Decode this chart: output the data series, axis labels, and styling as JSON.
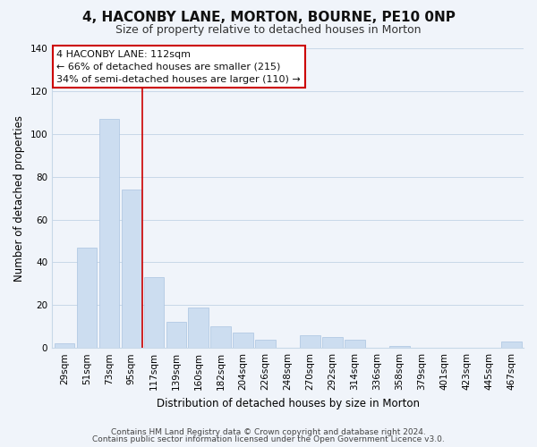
{
  "title": "4, HACONBY LANE, MORTON, BOURNE, PE10 0NP",
  "subtitle": "Size of property relative to detached houses in Morton",
  "xlabel": "Distribution of detached houses by size in Morton",
  "ylabel": "Number of detached properties",
  "categories": [
    "29sqm",
    "51sqm",
    "73sqm",
    "95sqm",
    "117sqm",
    "139sqm",
    "160sqm",
    "182sqm",
    "204sqm",
    "226sqm",
    "248sqm",
    "270sqm",
    "292sqm",
    "314sqm",
    "336sqm",
    "358sqm",
    "379sqm",
    "401sqm",
    "423sqm",
    "445sqm",
    "467sqm"
  ],
  "values": [
    2,
    47,
    107,
    74,
    33,
    12,
    19,
    10,
    7,
    4,
    0,
    6,
    5,
    4,
    0,
    1,
    0,
    0,
    0,
    0,
    3
  ],
  "bar_color": "#ccddf0",
  "bar_edge_color": "#aac4e0",
  "vline_x_index": 4,
  "vline_color": "#cc0000",
  "annotation_lines": [
    "4 HACONBY LANE: 112sqm",
    "← 66% of detached houses are smaller (215)",
    "34% of semi-detached houses are larger (110) →"
  ],
  "annotation_box_color": "#ffffff",
  "annotation_box_edge_color": "#cc0000",
  "ylim": [
    0,
    140
  ],
  "yticks": [
    0,
    20,
    40,
    60,
    80,
    100,
    120,
    140
  ],
  "footer_lines": [
    "Contains HM Land Registry data © Crown copyright and database right 2024.",
    "Contains public sector information licensed under the Open Government Licence v3.0."
  ],
  "bg_color": "#f0f4fa",
  "grid_color": "#c8d8e8",
  "title_fontsize": 11,
  "subtitle_fontsize": 9,
  "axis_label_fontsize": 8.5,
  "tick_fontsize": 7.5,
  "annotation_fontsize": 8,
  "footer_fontsize": 6.5
}
